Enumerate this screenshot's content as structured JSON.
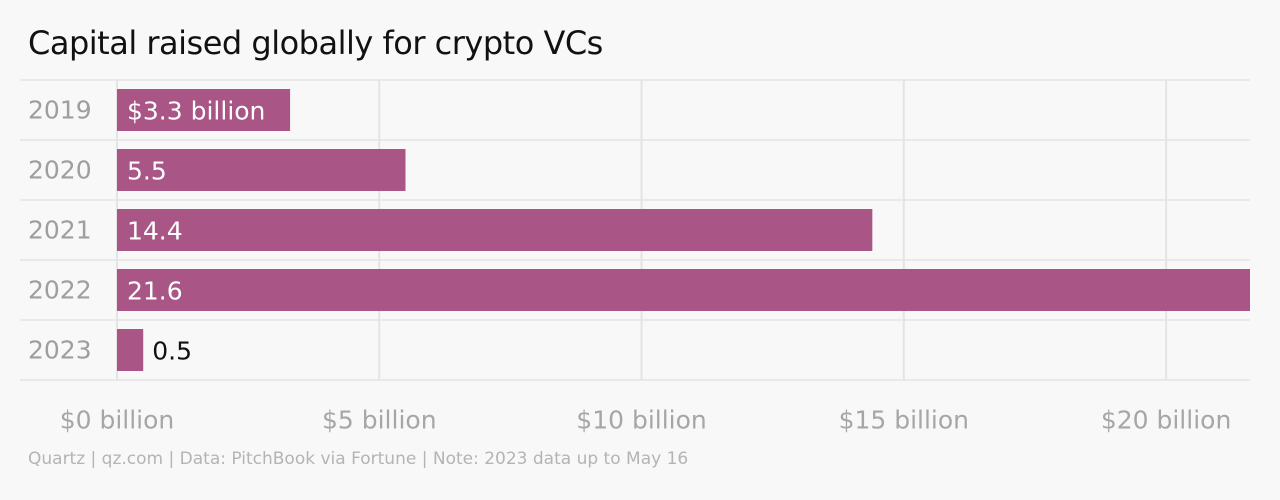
{
  "chart_data": {
    "type": "bar",
    "orientation": "horizontal",
    "title": "Capital raised globally for crypto VCs",
    "categories": [
      "2019",
      "2020",
      "2021",
      "2022",
      "2023"
    ],
    "values": [
      3.3,
      5.5,
      14.4,
      21.6,
      0.5
    ],
    "data_labels": [
      "$3.3 billion",
      "5.5",
      "14.4",
      "21.6",
      "0.5"
    ],
    "x_ticks": [
      0,
      5,
      10,
      15,
      20
    ],
    "x_tick_labels": [
      "$0 billion",
      "$5 billion",
      "$10 billion",
      "$15 billion",
      "$20 billion"
    ],
    "xlim": [
      0,
      21.6
    ],
    "xlabel": "",
    "ylabel": "",
    "grid": true,
    "legend": "none"
  },
  "source": "Quartz | qz.com | Data: PitchBook via Fortune | Note: 2023 data up to May 16",
  "colors": {
    "bar": "#a95686",
    "background": "#f8f8f8",
    "grid": "#e4e4e4",
    "category_text": "#9e9e9e",
    "tick_text": "#a6a6a6",
    "label_inside": "#ffffff",
    "label_outside": "#111111"
  }
}
